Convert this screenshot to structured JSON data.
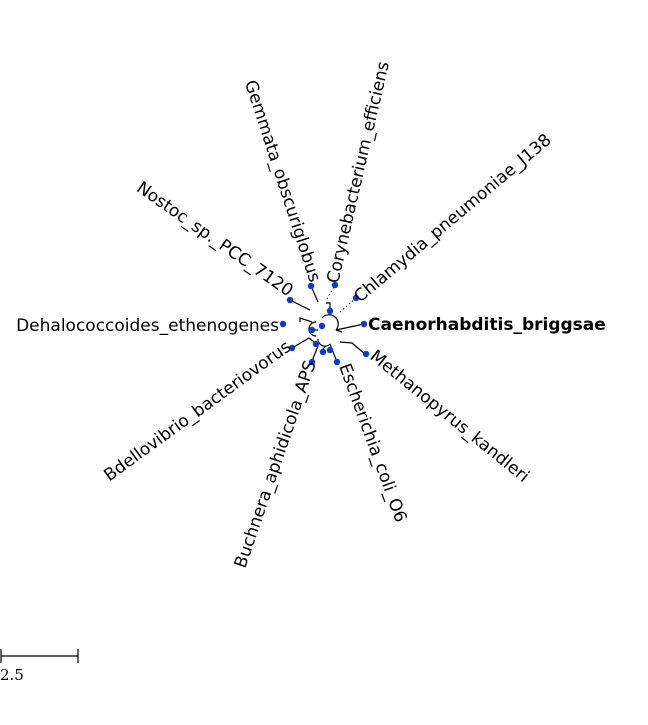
{
  "tree": {
    "node_color": "#0a3ad6",
    "leaves": [
      {
        "name": "Caenorhabditis_briggsae",
        "highlight": true
      },
      {
        "name": "Methanopyrus_kandleri",
        "highlight": false
      },
      {
        "name": "Escherichia_coli_O6",
        "highlight": false
      },
      {
        "name": "Buchnera_aphidicola_APS",
        "highlight": false
      },
      {
        "name": "Bdellovibrio_bacteriovorus",
        "highlight": false
      },
      {
        "name": "Dehalococcoides_ethenogenes",
        "highlight": false
      },
      {
        "name": "Nostoc_sp._PCC_7120",
        "highlight": false
      },
      {
        "name": "Gemmata_obscuriglobus",
        "highlight": false
      },
      {
        "name": "Corynebacterium_efficiens",
        "highlight": false
      },
      {
        "name": "Chlamydia_pneumoniae_J138",
        "highlight": false
      }
    ]
  },
  "scale_bar": {
    "label": "2.5"
  }
}
